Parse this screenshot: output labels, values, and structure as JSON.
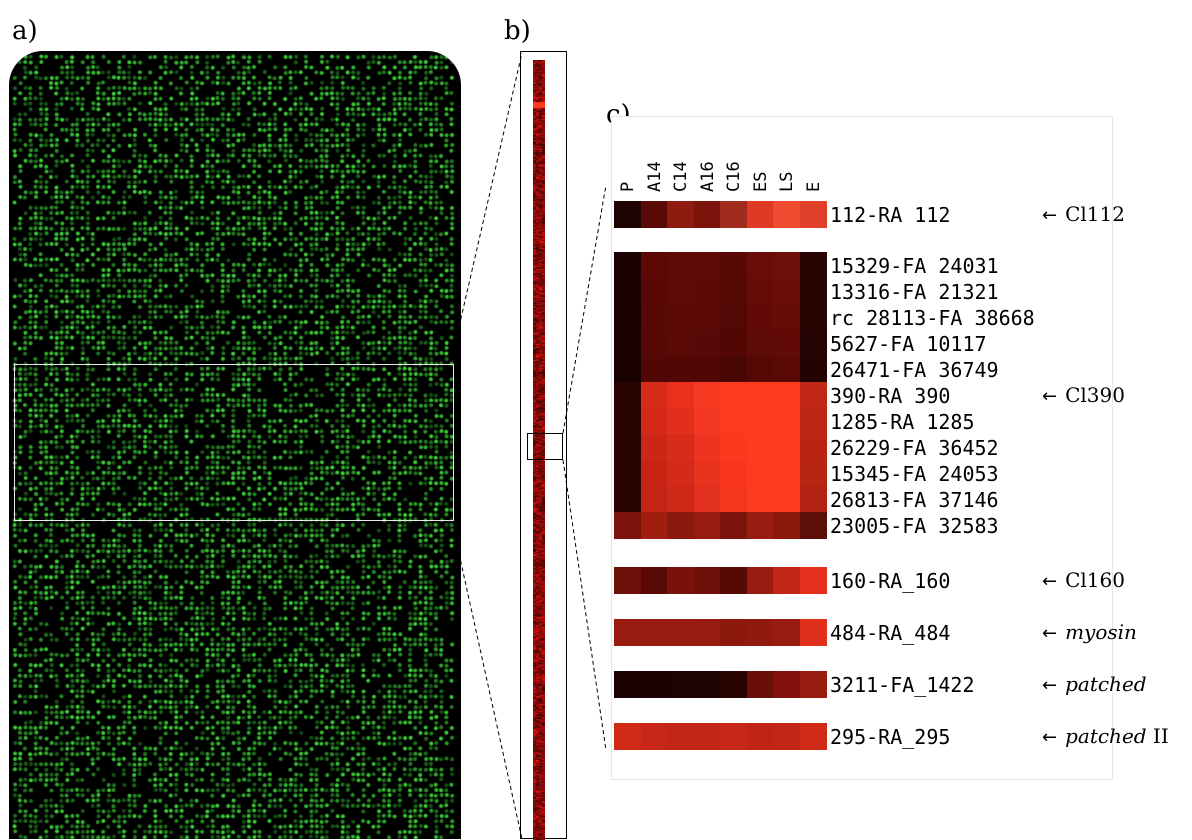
{
  "panels": {
    "a": "a)",
    "b": "b)",
    "c": "c)"
  },
  "panel_a": {
    "spot_color": "#3fd83a",
    "background": "#000000"
  },
  "heatmap": {
    "columns": [
      "P",
      "A14",
      "C14",
      "A16",
      "C16",
      "ES",
      "LS",
      "E"
    ],
    "groups": [
      {
        "rows": [
          {
            "label": "112-RA 112",
            "annotation": "Cl112",
            "annotation_style": "normal",
            "colors": [
              "#1f0202",
              "#5a0a06",
              "#8e1a10",
              "#7d140c",
              "#a02a1c",
              "#e03a24",
              "#f04a30",
              "#e0402a"
            ]
          }
        ]
      },
      {
        "rows": [
          {
            "label": "15329-FA 24031",
            "colors": [
              "#1c0202",
              "#5c0805",
              "#600a06",
              "#5e0a06",
              "#580805",
              "#6a0c07",
              "#6e0e08",
              "#2a0403"
            ]
          },
          {
            "label": "13316-FA 21321",
            "colors": [
              "#1c0202",
              "#5a0805",
              "#5e0a06",
              "#5c0a06",
              "#560805",
              "#660c07",
              "#6a0c07",
              "#2a0403"
            ]
          },
          {
            "label": "rc 28113-FA 38668",
            "colors": [
              "#1a0202",
              "#580805",
              "#5c0906",
              "#5a0906",
              "#540805",
              "#620b06",
              "#660c07",
              "#280403"
            ]
          },
          {
            "label": "5627-FA 10117",
            "colors": [
              "#1a0202",
              "#560805",
              "#5a0906",
              "#580806",
              "#520705",
              "#5e0a06",
              "#620b06",
              "#260403"
            ]
          },
          {
            "label": "26471-FA 36749",
            "annotation": "",
            "colors": [
              "#1a0202",
              "#500705",
              "#520705",
              "#520705",
              "#4a0604",
              "#560805",
              "#5a0906",
              "#240303"
            ]
          },
          {
            "label": "390-RA 390",
            "annotation": "Cl390",
            "annotation_style": "normal",
            "colors": [
              "#2a0403",
              "#d82a18",
              "#e8301c",
              "#f63a22",
              "#ff3a1e",
              "#ff3a1e",
              "#ff3a1e",
              "#c02614"
            ]
          },
          {
            "label": "1285-RA 1285",
            "colors": [
              "#2a0403",
              "#d42818",
              "#e22e1c",
              "#f23822",
              "#ff3a1e",
              "#ff3a1e",
              "#ff3a1e",
              "#be2614"
            ]
          },
          {
            "label": "26229-FA 36452",
            "colors": [
              "#2a0403",
              "#cc2616",
              "#d82c1a",
              "#ec3420",
              "#fc381e",
              "#ff3a1e",
              "#ff3a1e",
              "#ba2412"
            ]
          },
          {
            "label": "15345-FA 24053",
            "colors": [
              "#2a0403",
              "#c82416",
              "#d42a1a",
              "#e8321e",
              "#f8361e",
              "#ff3a1e",
              "#ff3a1e",
              "#b62412"
            ]
          },
          {
            "label": "26813-FA 37146",
            "colors": [
              "#2a0403",
              "#c42416",
              "#d02818",
              "#e2301e",
              "#f4361e",
              "#ff3a1e",
              "#ff3a1e",
              "#b22212"
            ]
          },
          {
            "label": "23005-FA 32583",
            "colors": [
              "#7c140c",
              "#a01e10",
              "#8a180e",
              "#961c10",
              "#7c140c",
              "#981c10",
              "#8c180e",
              "#5c0e08"
            ]
          }
        ]
      },
      {
        "rows": [
          {
            "label": "160-RA_160",
            "annotation": "Cl160",
            "annotation_style": "normal",
            "colors": [
              "#6e0e08",
              "#5a0a06",
              "#7a120a",
              "#6e0e08",
              "#560905",
              "#9a1c10",
              "#c22616",
              "#e2301c"
            ]
          }
        ]
      },
      {
        "rows": [
          {
            "label": "484-RA_484",
            "annotation": "myosin",
            "annotation_style": "italic",
            "colors": [
              "#9a1c10",
              "#9a1c10",
              "#9a1c10",
              "#961c10",
              "#8c180e",
              "#901a0f",
              "#981c10",
              "#e0301c"
            ]
          }
        ]
      },
      {
        "rows": [
          {
            "label": "3211-FA_1422",
            "annotation": "patched",
            "annotation_style": "italic",
            "colors": [
              "#1a0202",
              "#1c0202",
              "#1e0302",
              "#1e0302",
              "#2a0403",
              "#6a0e08",
              "#820f09",
              "#9a1c10"
            ]
          }
        ]
      },
      {
        "rows": [
          {
            "label": "295-RA_295",
            "annotation": "patched",
            "annotation_suffix": " II",
            "annotation_style": "italic",
            "colors": [
              "#d02a18",
              "#c82616",
              "#c42616",
              "#c22616",
              "#c82616",
              "#c02414",
              "#c42616",
              "#d02a18"
            ]
          }
        ]
      }
    ]
  }
}
